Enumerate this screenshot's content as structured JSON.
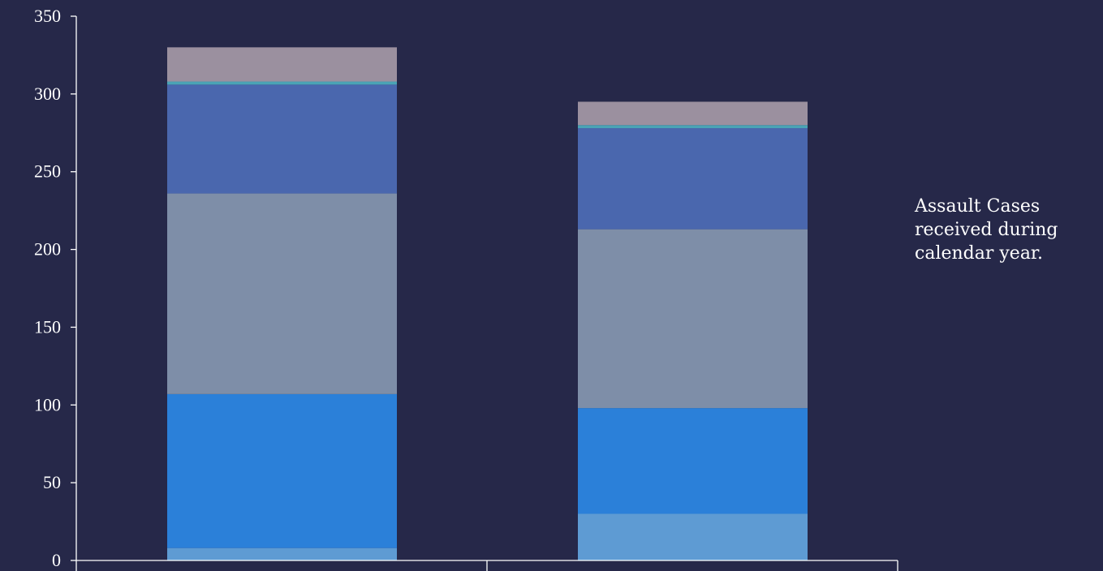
{
  "chart_data": {
    "type": "bar",
    "stacked": true,
    "categories": [
      "",
      ""
    ],
    "series": [
      {
        "values": [
          8,
          30
        ],
        "color": "#5e9bd3"
      },
      {
        "values": [
          99,
          68
        ],
        "color": "#2b80d9"
      },
      {
        "values": [
          129,
          115
        ],
        "color": "#7e8ea8"
      },
      {
        "values": [
          70,
          65
        ],
        "color": "#4a67ae"
      },
      {
        "values": [
          2,
          2
        ],
        "color": "#4aa3b5"
      },
      {
        "values": [
          22,
          15
        ],
        "color": "#9b909f"
      }
    ],
    "ylim": [
      0,
      350
    ],
    "yticks": [
      0,
      50,
      100,
      150,
      200,
      250,
      300,
      350
    ],
    "title": "",
    "xlabel": "",
    "ylabel": "",
    "grid": false,
    "legend": "none",
    "annotation": "Assault Cases received during calendar year."
  },
  "colors": {
    "background": "#262849",
    "axis": "#ffffff",
    "text": "#ffffff"
  }
}
